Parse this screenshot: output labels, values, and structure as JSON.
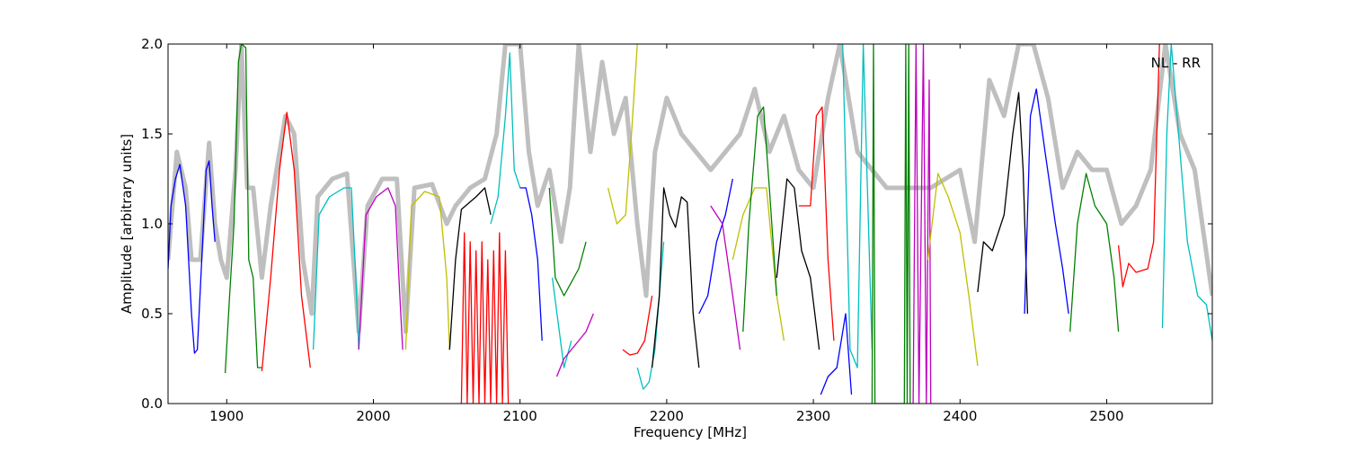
{
  "chart_data": {
    "type": "line",
    "xlabel": "Frequency [MHz]",
    "ylabel": "Amplitude [arbitrary units]",
    "annotation": "NL - RR",
    "xlim": [
      1860,
      2572
    ],
    "ylim": [
      0,
      2
    ],
    "xticks": [
      1900,
      2000,
      2100,
      2200,
      2300,
      2400,
      2500
    ],
    "yticks": [
      {
        "value": 0,
        "label": "0.0"
      },
      0.5,
      {
        "value": 1,
        "label": "1.0"
      },
      1.5,
      {
        "value": 2,
        "label": "2.0"
      }
    ],
    "series": [
      {
        "color": "#bfbfbf",
        "x": [
          1860,
          1866,
          1872,
          1876,
          1882,
          1888,
          1892,
          1896,
          1900,
          1906,
          1910,
          1914,
          1918,
          1924,
          1930,
          1940,
          1946,
          1952,
          1958,
          1962,
          1972,
          1982,
          1990,
          1996,
          2006,
          2016,
          2022,
          2028,
          2040,
          2050,
          2056,
          2066,
          2076,
          2084,
          2090,
          2100,
          2106,
          2112,
          2120,
          2128,
          2134,
          2140,
          2148,
          2156,
          2164,
          2172,
          2180,
          2186,
          2192,
          2200,
          2210,
          2220,
          2230,
          2240,
          2250,
          2260,
          2270,
          2280,
          2290,
          2300,
          2310,
          2318,
          2330,
          2350,
          2380,
          2400,
          2410,
          2420,
          2430,
          2440,
          2450,
          2460,
          2470,
          2480,
          2490,
          2500,
          2510,
          2520,
          2530,
          2540,
          2550,
          2560,
          2572
        ],
        "values": [
          0.8,
          1.4,
          1.2,
          0.8,
          0.8,
          1.45,
          1.0,
          0.8,
          0.7,
          1.3,
          2.0,
          1.2,
          1.2,
          0.7,
          1.1,
          1.6,
          1.5,
          0.8,
          0.5,
          1.15,
          1.25,
          1.28,
          0.4,
          1.1,
          1.25,
          1.25,
          0.4,
          1.2,
          1.22,
          1.0,
          1.1,
          1.2,
          1.25,
          1.5,
          2.0,
          2.0,
          1.4,
          1.1,
          1.3,
          0.9,
          1.2,
          2.0,
          1.4,
          1.9,
          1.5,
          1.7,
          1.0,
          0.6,
          1.4,
          1.7,
          1.5,
          1.4,
          1.3,
          1.4,
          1.5,
          1.75,
          1.4,
          1.6,
          1.3,
          1.2,
          1.7,
          2.0,
          1.4,
          1.2,
          1.2,
          1.3,
          0.9,
          1.8,
          1.6,
          2.0,
          2.0,
          1.7,
          1.2,
          1.4,
          1.3,
          1.3,
          1.0,
          1.1,
          1.3,
          2.0,
          1.5,
          1.3,
          0.6
        ]
      },
      {
        "color": "#0000ff",
        "x": [
          1860,
          1862,
          1865,
          1868,
          1872,
          1876,
          1878,
          1880,
          1883,
          1886,
          1888,
          1890,
          1892
        ],
        "values": [
          0.75,
          1.1,
          1.25,
          1.33,
          1.1,
          0.5,
          0.28,
          0.3,
          0.8,
          1.3,
          1.35,
          1.1,
          0.9
        ]
      },
      {
        "color": "#008000",
        "x": [
          1899,
          1902,
          1905,
          1908,
          1910,
          1913,
          1915,
          1918,
          1921,
          1924
        ],
        "values": [
          0.17,
          0.6,
          1.0,
          1.9,
          2.0,
          1.98,
          0.8,
          0.7,
          0.2,
          0.2
        ]
      },
      {
        "color": "#ff0000",
        "x": [
          1924,
          1930,
          1936,
          1941,
          1946,
          1951,
          1957
        ],
        "values": [
          0.18,
          0.7,
          1.3,
          1.62,
          1.3,
          0.6,
          0.2
        ]
      },
      {
        "color": "#00bfbf",
        "x": [
          1959,
          1963,
          1970,
          1980,
          1985,
          1988,
          1990
        ],
        "values": [
          0.3,
          1.05,
          1.15,
          1.2,
          1.2,
          0.7,
          0.3
        ]
      },
      {
        "color": "#bf00bf",
        "x": [
          1990,
          1995,
          2002,
          2010,
          2015,
          2018,
          2020
        ],
        "values": [
          0.3,
          1.05,
          1.15,
          1.2,
          1.1,
          0.6,
          0.3
        ]
      },
      {
        "color": "#bfbf00",
        "x": [
          2022,
          2026,
          2035,
          2045,
          2050,
          2052
        ],
        "values": [
          0.3,
          1.1,
          1.18,
          1.15,
          0.7,
          0.3
        ]
      },
      {
        "color": "#000000",
        "x": [
          2052,
          2056,
          2060,
          2070,
          2076,
          2080
        ],
        "values": [
          0.3,
          0.8,
          1.08,
          1.15,
          1.2,
          1.05
        ]
      },
      {
        "color": "#ff0000",
        "x": [
          2060,
          2062,
          2064,
          2066,
          2068,
          2070,
          2072,
          2074,
          2076,
          2078,
          2080,
          2082,
          2084,
          2086,
          2088,
          2090,
          2092
        ],
        "values": [
          0,
          0.95,
          0,
          0.9,
          0,
          0.85,
          0,
          0.9,
          0,
          0.8,
          0,
          0.85,
          0,
          0.95,
          0,
          0.85,
          0
        ]
      },
      {
        "color": "#00bfbf",
        "x": [
          2080,
          2085,
          2090,
          2093,
          2096,
          2100
        ],
        "values": [
          1.0,
          1.15,
          1.6,
          1.95,
          1.3,
          1.2
        ]
      },
      {
        "color": "#0000ff",
        "x": [
          2100,
          2104,
          2108,
          2112,
          2115
        ],
        "values": [
          1.2,
          1.2,
          1.05,
          0.8,
          0.35
        ]
      },
      {
        "color": "#008000",
        "x": [
          2120,
          2124,
          2130,
          2140,
          2145
        ],
        "values": [
          1.2,
          0.7,
          0.6,
          0.75,
          0.9
        ]
      },
      {
        "color": "#00bfbf",
        "x": [
          2122,
          2126,
          2130,
          2135
        ],
        "values": [
          0.7,
          0.45,
          0.2,
          0.35
        ]
      },
      {
        "color": "#bf00bf",
        "x": [
          2125,
          2130,
          2140,
          2145,
          2150
        ],
        "values": [
          0.15,
          0.25,
          0.35,
          0.4,
          0.5
        ]
      },
      {
        "color": "#bfbf00",
        "x": [
          2160,
          2166,
          2172,
          2176,
          2180
        ],
        "values": [
          1.2,
          1.0,
          1.05,
          1.5,
          2.0
        ]
      },
      {
        "color": "#ff0000",
        "x": [
          2170,
          2175,
          2180,
          2185,
          2190
        ],
        "values": [
          0.3,
          0.27,
          0.28,
          0.35,
          0.6
        ]
      },
      {
        "color": "#00bfbf",
        "x": [
          2180,
          2184,
          2188,
          2192,
          2198
        ],
        "values": [
          0.2,
          0.08,
          0.12,
          0.3,
          0.9
        ]
      },
      {
        "color": "#000000",
        "x": [
          2190,
          2195,
          2198,
          2202,
          2206,
          2210,
          2214,
          2218,
          2222
        ],
        "values": [
          0.2,
          0.6,
          1.2,
          1.05,
          0.98,
          1.15,
          1.12,
          0.5,
          0.2
        ]
      },
      {
        "color": "#0000ff",
        "x": [
          2222,
          2228,
          2234,
          2240,
          2245
        ],
        "values": [
          0.5,
          0.6,
          0.9,
          1.05,
          1.25
        ]
      },
      {
        "color": "#bf00bf",
        "x": [
          2230,
          2238,
          2245,
          2250
        ],
        "values": [
          1.1,
          1.0,
          0.6,
          0.3
        ]
      },
      {
        "color": "#bfbf00",
        "x": [
          2245,
          2252,
          2260,
          2268,
          2275,
          2280
        ],
        "values": [
          0.8,
          1.05,
          1.2,
          1.2,
          0.6,
          0.35
        ]
      },
      {
        "color": "#008000",
        "x": [
          2252,
          2256,
          2262,
          2266,
          2270,
          2275
        ],
        "values": [
          0.4,
          1.0,
          1.6,
          1.65,
          1.2,
          0.6
        ]
      },
      {
        "color": "#000000",
        "x": [
          2275,
          2282,
          2287,
          2292,
          2298,
          2304
        ],
        "values": [
          0.7,
          1.25,
          1.2,
          0.85,
          0.7,
          0.3
        ]
      },
      {
        "color": "#ff0000",
        "x": [
          2290,
          2298,
          2302,
          2306,
          2310,
          2314
        ],
        "values": [
          1.1,
          1.1,
          1.6,
          1.65,
          0.8,
          0.35
        ]
      },
      {
        "color": "#0000ff",
        "x": [
          2305,
          2310,
          2316,
          2322,
          2326
        ],
        "values": [
          0.05,
          0.15,
          0.2,
          0.5,
          0.05
        ]
      },
      {
        "color": "#00bfbf",
        "x": [
          2320,
          2325,
          2330,
          2334,
          2340
        ],
        "values": [
          2.0,
          0.3,
          0.2,
          2.0,
          0.3
        ]
      },
      {
        "color": "#008000",
        "x": [
          2340,
          2341,
          2342,
          2362,
          2363,
          2364,
          2365,
          2366
        ],
        "values": [
          0,
          2,
          0,
          0,
          2,
          0,
          2,
          0
        ]
      },
      {
        "color": "#bf00bf",
        "x": [
          2368,
          2370,
          2372,
          2375,
          2377,
          2379,
          2380
        ],
        "values": [
          0,
          2,
          0,
          2,
          0,
          1.8,
          0
        ]
      },
      {
        "color": "#bfbf00",
        "x": [
          2378,
          2385,
          2392,
          2400,
          2406,
          2412
        ],
        "values": [
          0.8,
          1.28,
          1.15,
          0.95,
          0.6,
          0.21
        ]
      },
      {
        "color": "#000000",
        "x": [
          2412,
          2416,
          2422,
          2430,
          2436,
          2440,
          2443,
          2446
        ],
        "values": [
          0.62,
          0.9,
          0.85,
          1.05,
          1.5,
          1.73,
          1.3,
          0.5
        ]
      },
      {
        "color": "#0000ff",
        "x": [
          2444,
          2448,
          2452,
          2458,
          2465,
          2470,
          2474
        ],
        "values": [
          0.5,
          1.6,
          1.75,
          1.4,
          1.0,
          0.75,
          0.5
        ]
      },
      {
        "color": "#008000",
        "x": [
          2475,
          2480,
          2486,
          2492,
          2500,
          2505,
          2508
        ],
        "values": [
          0.4,
          1.0,
          1.28,
          1.1,
          1.0,
          0.7,
          0.4
        ]
      },
      {
        "color": "#ff0000",
        "x": [
          2508,
          2511,
          2515,
          2520,
          2528,
          2532,
          2536
        ],
        "values": [
          0.88,
          0.65,
          0.78,
          0.73,
          0.75,
          0.9,
          2.0
        ]
      },
      {
        "color": "#00bfbf",
        "x": [
          2538,
          2541,
          2544,
          2548,
          2555,
          2562,
          2568,
          2572
        ],
        "values": [
          0.42,
          1.5,
          2.0,
          1.6,
          0.9,
          0.6,
          0.55,
          0.35
        ]
      }
    ]
  }
}
